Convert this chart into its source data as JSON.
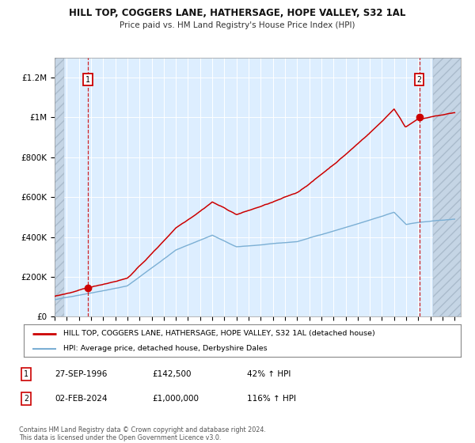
{
  "title": "HILL TOP, COGGERS LANE, HATHERSAGE, HOPE VALLEY, S32 1AL",
  "subtitle": "Price paid vs. HM Land Registry's House Price Index (HPI)",
  "ylim": [
    0,
    1300000
  ],
  "xlim_start": 1994.0,
  "xlim_end": 2027.5,
  "yticks": [
    0,
    200000,
    400000,
    600000,
    800000,
    1000000,
    1200000
  ],
  "ytick_labels": [
    "£0",
    "£200K",
    "£400K",
    "£600K",
    "£800K",
    "£1M",
    "£1.2M"
  ],
  "xticks": [
    1994,
    1995,
    1996,
    1997,
    1998,
    1999,
    2000,
    2001,
    2002,
    2003,
    2004,
    2005,
    2006,
    2007,
    2008,
    2009,
    2010,
    2011,
    2012,
    2013,
    2014,
    2015,
    2016,
    2017,
    2018,
    2019,
    2020,
    2021,
    2022,
    2023,
    2024,
    2025,
    2026,
    2027
  ],
  "background_color": "#ffffff",
  "plot_bg_color": "#ddeeff",
  "grid_color": "#ffffff",
  "purchase_year": 1996.742,
  "purchase_price": 142500,
  "sale_year": 2024.085,
  "sale_price": 1000000,
  "legend_line1": "HILL TOP, COGGERS LANE, HATHERSAGE, HOPE VALLEY, S32 1AL (detached house)",
  "legend_line2": "HPI: Average price, detached house, Derbyshire Dales",
  "note_label1": "1",
  "note_date1": "27-SEP-1996",
  "note_price1": "£142,500",
  "note_hpi1": "42% ↑ HPI",
  "note_label2": "2",
  "note_date2": "02-FEB-2024",
  "note_price2": "£1,000,000",
  "note_hpi2": "116% ↑ HPI",
  "footer": "Contains HM Land Registry data © Crown copyright and database right 2024.\nThis data is licensed under the Open Government Licence v3.0.",
  "red_color": "#cc0000",
  "blue_color": "#7bafd4",
  "dot_color": "#cc0000",
  "hatch_region_color": "#c5d5e5"
}
